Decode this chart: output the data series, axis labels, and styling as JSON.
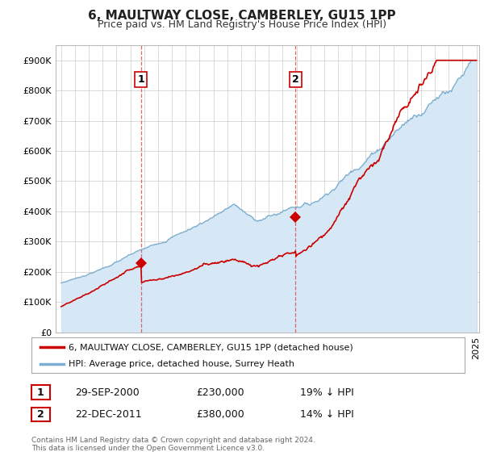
{
  "title": "6, MAULTWAY CLOSE, CAMBERLEY, GU15 1PP",
  "subtitle": "Price paid vs. HM Land Registry's House Price Index (HPI)",
  "y_ticks": [
    0,
    100000,
    200000,
    300000,
    400000,
    500000,
    600000,
    700000,
    800000,
    900000
  ],
  "ylim": [
    0,
    950000
  ],
  "sale1_year": 2000.75,
  "sale1_price": 230000,
  "sale1_label": "1",
  "sale2_year": 2011.92,
  "sale2_price": 380000,
  "sale2_label": "2",
  "red_color": "#cc0000",
  "blue_color": "#7aadcf",
  "blue_fill": "#d6e8f5",
  "legend_label_red": "6, MAULTWAY CLOSE, CAMBERLEY, GU15 1PP (detached house)",
  "legend_label_blue": "HPI: Average price, detached house, Surrey Heath",
  "annotation1_date": "29-SEP-2000",
  "annotation1_price": "£230,000",
  "annotation1_pct": "19% ↓ HPI",
  "annotation2_date": "22-DEC-2011",
  "annotation2_price": "£380,000",
  "annotation2_pct": "14% ↓ HPI",
  "footer": "Contains HM Land Registry data © Crown copyright and database right 2024.\nThis data is licensed under the Open Government Licence v3.0.",
  "background_color": "#ffffff",
  "grid_color": "#cccccc"
}
